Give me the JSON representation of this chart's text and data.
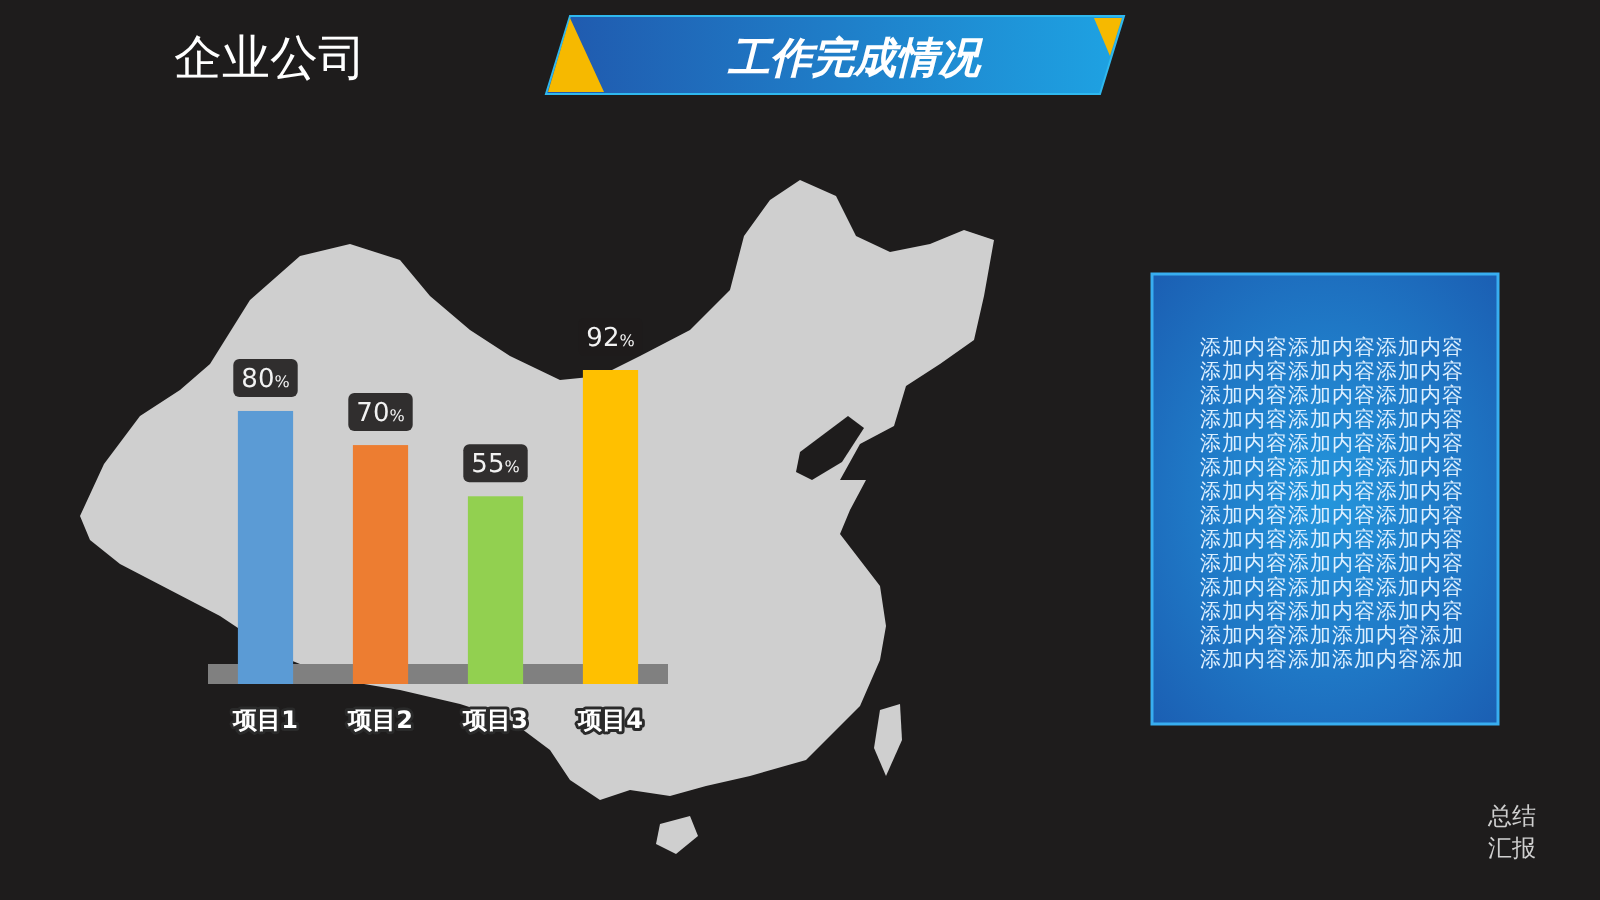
{
  "chart_data": {
    "type": "bar",
    "title": "工作完成情况",
    "categories": [
      "项目1",
      "项目2",
      "项目3",
      "项目4"
    ],
    "values": [
      80,
      70,
      55,
      92
    ],
    "colors": [
      "#5b9bd5",
      "#ed7d31",
      "#92d050",
      "#ffc000"
    ],
    "value_labels": [
      "80%",
      "70%",
      "55%",
      "92%"
    ],
    "annotations": [
      "企业公司",
      "添加内容添加内容添加内容添加内容添加内容添加内容添加内容添加内容添加内容添加内容添加内容添加内容添加内容添加内容添加内容添加内容添加内容添加内容添加内容添加内容添加内容添加内容添加内容添加内容添加内容添加内容添加内容添加内容添加内容添加内容添加内容添加内容添加内容添加内容添加内容添加内容添加内容添加添加内容添加添加内容添加添加内容添加",
      "总结汇报"
    ]
  }
}
